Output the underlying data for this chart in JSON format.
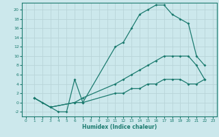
{
  "xlabel": "Humidex (Indice chaleur)",
  "bg_color": "#cce8ec",
  "line_color": "#1a7a6e",
  "grid_color": "#b8d4d8",
  "xlim": [
    -0.5,
    23.5
  ],
  "ylim": [
    -3,
    21.5
  ],
  "xticks": [
    0,
    1,
    2,
    3,
    4,
    5,
    6,
    7,
    8,
    9,
    10,
    11,
    12,
    13,
    14,
    15,
    16,
    17,
    18,
    19,
    20,
    21,
    22,
    23
  ],
  "yticks": [
    -2,
    0,
    2,
    4,
    6,
    8,
    10,
    12,
    14,
    16,
    18,
    20
  ],
  "line1_x": [
    1,
    2,
    3,
    4,
    5,
    6,
    7,
    11,
    12,
    13,
    14,
    15,
    16,
    17,
    18,
    19,
    20,
    21,
    22
  ],
  "line1_y": [
    1,
    0,
    -1,
    -2,
    -2,
    5,
    0,
    12,
    13,
    16,
    19,
    20,
    21,
    21,
    19,
    18,
    17,
    10,
    8
  ],
  "line2_x": [
    1,
    3,
    6,
    7,
    11,
    12,
    13,
    14,
    15,
    16,
    17,
    18,
    19,
    20,
    21,
    22
  ],
  "line2_y": [
    1,
    -1,
    0,
    1,
    4,
    5,
    6,
    7,
    8,
    9,
    10,
    10,
    10,
    10,
    8,
    5
  ],
  "line3_x": [
    1,
    3,
    6,
    7,
    11,
    12,
    13,
    14,
    15,
    16,
    17,
    18,
    19,
    20,
    21,
    22
  ],
  "line3_y": [
    1,
    -1,
    0,
    0,
    2,
    2,
    3,
    3,
    4,
    4,
    5,
    5,
    5,
    4,
    4,
    5
  ]
}
